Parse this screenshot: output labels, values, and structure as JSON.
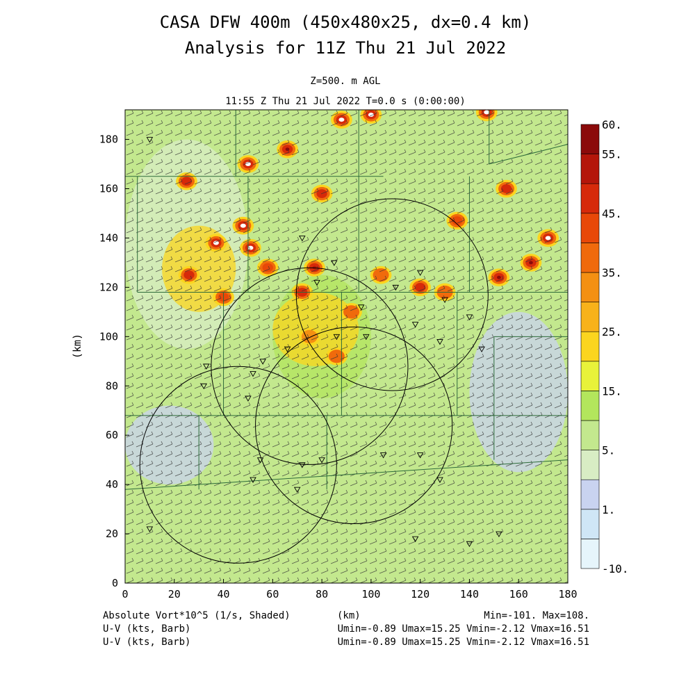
{
  "header": {
    "title_line1": "CASA DFW 400m (450x480x25, dx=0.4 km)",
    "title_line2": "Analysis for 11Z Thu 21 Jul 2022",
    "level": "Z=500. m AGL",
    "valid_time": "11:55 Z Thu 21 Jul 2022    T=0.0 s (0:00:00)"
  },
  "footer": {
    "field_label": "Absolute Vort*10^5 (1/s, Shaded)",
    "x_unit": "(km)",
    "minmax": "Min=-101. Max=108.",
    "vector_label_1": "U-V (kts, Barb)",
    "vector_stats_1": "Umin=-0.89 Umax=15.25 Vmin=-2.12 Vmax=16.51",
    "vector_label_2": "U-V (kts, Barb)",
    "vector_stats_2": "Umin=-0.89 Umax=15.25 Vmin=-2.12 Vmax=16.51"
  },
  "chart_data": {
    "type": "heatmap",
    "xlabel": "",
    "ylabel": "(km)",
    "xlim": [
      0,
      180
    ],
    "ylim": [
      0,
      192
    ],
    "x_ticks": [
      0,
      20,
      40,
      60,
      80,
      100,
      120,
      140,
      160,
      180
    ],
    "y_ticks": [
      0,
      20,
      40,
      60,
      80,
      100,
      120,
      140,
      160,
      180
    ],
    "colorbar": {
      "levels": [
        -10,
        -5,
        1,
        2,
        5,
        10,
        15,
        20,
        25,
        30,
        35,
        40,
        45,
        50,
        55,
        60
      ],
      "labels": [
        {
          "value": 60,
          "text": "60."
        },
        {
          "value": 55,
          "text": "55."
        },
        {
          "value": 45,
          "text": "45."
        },
        {
          "value": 35,
          "text": "35."
        },
        {
          "value": 25,
          "text": "25."
        },
        {
          "value": 15,
          "text": "15."
        },
        {
          "value": 5,
          "text": "5."
        },
        {
          "value": 1,
          "text": "1."
        },
        {
          "value": -10,
          "text": "-10."
        }
      ],
      "colors": [
        "#e6f5fb",
        "#cfe6f6",
        "#c9d3f0",
        "#d8edc4",
        "#c3e88e",
        "#b3e65c",
        "#e8f23a",
        "#fbd51f",
        "#f8b21a",
        "#f49012",
        "#f06a0c",
        "#e84808",
        "#d62a0a",
        "#b4160a",
        "#8b0a0a"
      ]
    },
    "background_value": 5,
    "features": [
      {
        "kind": "band",
        "x": [
          0,
          180
        ],
        "y": [
          0,
          38
        ],
        "value": 8
      },
      {
        "kind": "region",
        "x": [
          0,
          36
        ],
        "y": [
          40,
          72
        ],
        "value": 1.5
      },
      {
        "kind": "region",
        "x": [
          140,
          180
        ],
        "y": [
          45,
          110
        ],
        "value": 1.5
      },
      {
        "kind": "region",
        "x": [
          0,
          50
        ],
        "y": [
          95,
          180
        ],
        "value": 2
      },
      {
        "kind": "region",
        "x": [
          60,
          100
        ],
        "y": [
          75,
          125
        ],
        "value": 13
      },
      {
        "kind": "region",
        "x": [
          15,
          45
        ],
        "y": [
          110,
          145
        ],
        "value": 22
      },
      {
        "kind": "region",
        "x": [
          60,
          95
        ],
        "y": [
          88,
          118
        ],
        "value": 24
      },
      {
        "kind": "cell",
        "x": 48,
        "y": 145,
        "value": 60
      },
      {
        "kind": "cell",
        "x": 37,
        "y": 138,
        "value": 60
      },
      {
        "kind": "cell",
        "x": 51,
        "y": 136,
        "value": 60
      },
      {
        "kind": "cell",
        "x": 40,
        "y": 116,
        "value": 40
      },
      {
        "kind": "cell",
        "x": 26,
        "y": 125,
        "value": 45
      },
      {
        "kind": "cell",
        "x": 77,
        "y": 128,
        "value": 50
      },
      {
        "kind": "cell",
        "x": 72,
        "y": 118,
        "value": 45
      },
      {
        "kind": "cell",
        "x": 120,
        "y": 120,
        "value": 45
      },
      {
        "kind": "cell",
        "x": 86,
        "y": 92,
        "value": 35
      },
      {
        "kind": "cell",
        "x": 75,
        "y": 100,
        "value": 30
      },
      {
        "kind": "cell",
        "x": 50,
        "y": 170,
        "value": 60
      },
      {
        "kind": "cell",
        "x": 66,
        "y": 176,
        "value": 55
      },
      {
        "kind": "cell",
        "x": 88,
        "y": 188,
        "value": 60
      },
      {
        "kind": "cell",
        "x": 100,
        "y": 190,
        "value": 60
      },
      {
        "kind": "cell",
        "x": 147,
        "y": 191,
        "value": 60
      },
      {
        "kind": "cell",
        "x": 25,
        "y": 163,
        "value": 45
      },
      {
        "kind": "cell",
        "x": 155,
        "y": 160,
        "value": 45
      },
      {
        "kind": "cell",
        "x": 172,
        "y": 140,
        "value": 60
      },
      {
        "kind": "cell",
        "x": 165,
        "y": 130,
        "value": 55
      },
      {
        "kind": "cell",
        "x": 152,
        "y": 124,
        "value": 55
      },
      {
        "kind": "cell",
        "x": 135,
        "y": 147,
        "value": 40
      },
      {
        "kind": "cell",
        "x": 130,
        "y": 118,
        "value": 35
      },
      {
        "kind": "cell",
        "x": 92,
        "y": 110,
        "value": 35
      },
      {
        "kind": "cell",
        "x": 104,
        "y": 125,
        "value": 35
      },
      {
        "kind": "cell",
        "x": 80,
        "y": 158,
        "value": 45
      },
      {
        "kind": "cell",
        "x": 58,
        "y": 128,
        "value": 40
      }
    ],
    "radar_rings": [
      {
        "cx": 108.6,
        "cy": 117,
        "r": 39
      },
      {
        "cx": 75,
        "cy": 88,
        "r": 40
      },
      {
        "cx": 93,
        "cy": 64,
        "r": 40
      },
      {
        "cx": 46,
        "cy": 48,
        "r": 40
      }
    ]
  }
}
